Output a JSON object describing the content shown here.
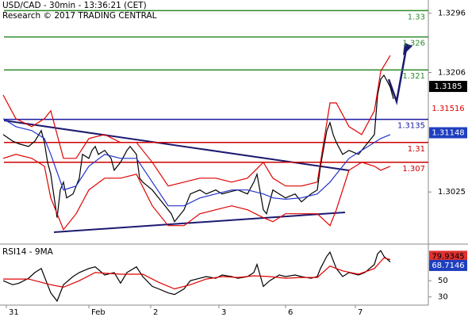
{
  "header": {
    "title": "USD/CAD - 30min - 13:36:21 (CET)",
    "subtitle": "Research © 2017 TRADING CENTRAL"
  },
  "chart_data": [
    {
      "type": "line",
      "xlim": [
        0,
        135
      ],
      "ylim": [
        1.2946,
        1.3316
      ],
      "yticks": [
        1.3296,
        1.3206,
        1.3025
      ],
      "series": [
        {
          "color": "#000000",
          "x": [
            1,
            4,
            6,
            9,
            11,
            13,
            14,
            15,
            16,
            18,
            19,
            20,
            21,
            23,
            25,
            26,
            28,
            29,
            30,
            31,
            33,
            35,
            36,
            38,
            40,
            41,
            43,
            44,
            45,
            48,
            50,
            53,
            54,
            55,
            56,
            58,
            59,
            60,
            63,
            65,
            68,
            70,
            73,
            75,
            78,
            80,
            81,
            83,
            84,
            85,
            86,
            88,
            90,
            93,
            95,
            98,
            100,
            101,
            103,
            104,
            105,
            106,
            108,
            110,
            113,
            115,
            118,
            119,
            120,
            121,
            123,
            124
          ],
          "values": [
            1.3112,
            1.3102,
            1.3098,
            1.3094,
            1.3102,
            1.3118,
            1.31,
            1.307,
            1.3052,
            1.2986,
            1.3028,
            1.304,
            1.3016,
            1.3022,
            1.3046,
            1.3082,
            1.3076,
            1.3088,
            1.3094,
            1.3082,
            1.3088,
            1.3076,
            1.3058,
            1.307,
            1.3088,
            1.3094,
            1.3082,
            1.3046,
            1.304,
            1.3028,
            1.3016,
            1.2998,
            1.2992,
            1.298,
            1.2986,
            1.2998,
            1.301,
            1.3022,
            1.3028,
            1.3022,
            1.3028,
            1.3022,
            1.3026,
            1.3028,
            1.3022,
            1.304,
            1.3052,
            1.2998,
            1.2992,
            1.301,
            1.3028,
            1.3022,
            1.3016,
            1.3022,
            1.301,
            1.3022,
            1.3028,
            1.3064,
            1.3118,
            1.313,
            1.3112,
            1.31,
            1.3082,
            1.3088,
            1.3082,
            1.3094,
            1.3112,
            1.3172,
            1.3196,
            1.3202,
            1.3184,
            1.3166
          ]
        },
        {
          "color": "#e00000",
          "x": [
            1,
            5,
            10,
            14,
            16,
            20,
            24,
            28,
            33,
            38,
            43,
            48,
            53,
            58,
            63,
            68,
            73,
            78,
            83,
            86,
            90,
            95,
            100,
            104,
            106,
            110,
            114,
            118,
            120,
            123
          ],
          "values": [
            1.3172,
            1.3136,
            1.3124,
            1.3136,
            1.3148,
            1.3076,
            1.3076,
            1.3106,
            1.3112,
            1.31,
            1.31,
            1.307,
            1.3034,
            1.304,
            1.3046,
            1.3046,
            1.304,
            1.3046,
            1.307,
            1.3046,
            1.3034,
            1.3034,
            1.304,
            1.316,
            1.316,
            1.3124,
            1.3112,
            1.3148,
            1.3208,
            1.3232
          ]
        },
        {
          "color": "#e00000",
          "x": [
            1,
            5,
            10,
            14,
            16,
            20,
            24,
            28,
            33,
            38,
            43,
            48,
            53,
            58,
            63,
            68,
            73,
            78,
            83,
            86,
            90,
            95,
            100,
            104,
            106,
            110,
            114,
            118,
            120,
            123
          ],
          "values": [
            1.3076,
            1.3082,
            1.3076,
            1.3064,
            1.3016,
            1.2968,
            1.2992,
            1.3028,
            1.3046,
            1.3046,
            1.3052,
            1.3004,
            1.2974,
            1.2974,
            1.2992,
            1.2998,
            1.3004,
            1.2998,
            1.2986,
            1.298,
            1.2992,
            1.2992,
            1.2992,
            1.2974,
            1.2998,
            1.3058,
            1.307,
            1.3064,
            1.3058,
            1.3064
          ]
        },
        {
          "color": "#2233cc",
          "x": [
            1,
            5,
            10,
            14,
            16,
            20,
            24,
            28,
            33,
            38,
            43,
            48,
            53,
            58,
            63,
            68,
            73,
            78,
            83,
            86,
            90,
            95,
            100,
            104,
            106,
            110,
            114,
            118,
            120,
            123
          ],
          "values": [
            1.3136,
            1.3124,
            1.3118,
            1.3106,
            1.3082,
            1.3028,
            1.3034,
            1.3064,
            1.3082,
            1.3076,
            1.3076,
            1.304,
            1.3004,
            1.3004,
            1.3016,
            1.3022,
            1.3028,
            1.3028,
            1.3022,
            1.3016,
            1.3014,
            1.3016,
            1.3022,
            1.304,
            1.3052,
            1.3076,
            1.3088,
            1.31,
            1.3106,
            1.3112
          ]
        }
      ],
      "levels": [
        {
          "value": 1.33,
          "color": "#2e8b2e"
        },
        {
          "value": 1.326,
          "color": "#2e8b2e"
        },
        {
          "value": 1.321,
          "color": "#2e8b2e"
        },
        {
          "value": 1.3135,
          "color": "#1a1aa0"
        },
        {
          "value": 1.31,
          "color": "#cc0000"
        },
        {
          "value": 1.307,
          "color": "#cc0000"
        }
      ],
      "markers": [
        {
          "value": 1.3185,
          "color": "#000000",
          "text_color": "#ffffff"
        },
        {
          "value": 1.31516,
          "color": "#ffffff",
          "text_color": "#dd0000"
        },
        {
          "value": 1.31148,
          "color": "#1f3fbf",
          "text_color": "#ffffff"
        }
      ]
    },
    {
      "type": "line",
      "title": "RSI14 - 9MA",
      "xlim": [
        0,
        135
      ],
      "ylim": [
        20,
        93
      ],
      "yticks": [
        30,
        50
      ],
      "xticks": [
        {
          "value": 2,
          "label": "31"
        },
        {
          "value": 28,
          "label": "Feb"
        },
        {
          "value": 47.5,
          "label": "2"
        },
        {
          "value": 69,
          "label": "3"
        },
        {
          "value": 90,
          "label": "6"
        },
        {
          "value": 112,
          "label": "7"
        }
      ],
      "series": [
        {
          "color": "#000000",
          "x": [
            1,
            4,
            6,
            9,
            11,
            13,
            15,
            16,
            18,
            20,
            23,
            25,
            28,
            30,
            33,
            36,
            38,
            40,
            43,
            45,
            48,
            50,
            53,
            55,
            58,
            60,
            63,
            65,
            68,
            70,
            73,
            75,
            78,
            80,
            81,
            83,
            85,
            88,
            90,
            93,
            95,
            98,
            100,
            101,
            103,
            104,
            106,
            108,
            110,
            113,
            115,
            118,
            119,
            120,
            121,
            123
          ],
          "values": [
            50,
            45,
            47,
            53,
            60,
            65,
            45,
            35,
            25,
            45,
            55,
            60,
            65,
            67,
            57,
            60,
            47,
            60,
            67,
            55,
            43,
            40,
            35,
            33,
            40,
            50,
            53,
            55,
            53,
            57,
            55,
            53,
            55,
            60,
            70,
            43,
            50,
            57,
            55,
            57,
            55,
            53,
            55,
            65,
            80,
            85,
            65,
            55,
            60,
            57,
            60,
            70,
            83,
            87,
            80,
            73
          ]
        },
        {
          "color": "#e00000",
          "x": [
            1,
            9,
            16,
            20,
            25,
            30,
            38,
            45,
            50,
            55,
            60,
            65,
            70,
            75,
            80,
            85,
            90,
            95,
            100,
            104,
            108,
            113,
            118,
            121,
            123
          ],
          "values": [
            52,
            52,
            45,
            42,
            50,
            60,
            58,
            58,
            48,
            40,
            45,
            52,
            55,
            54,
            56,
            55,
            53,
            54,
            54,
            68,
            62,
            58,
            65,
            78,
            76
          ]
        }
      ],
      "markers": [
        {
          "value": 79.9345,
          "color": "#e03030",
          "text_color": "#000000"
        },
        {
          "value": 68.7146,
          "color": "#1f3fbf",
          "text_color": "#ffffff"
        }
      ]
    }
  ]
}
